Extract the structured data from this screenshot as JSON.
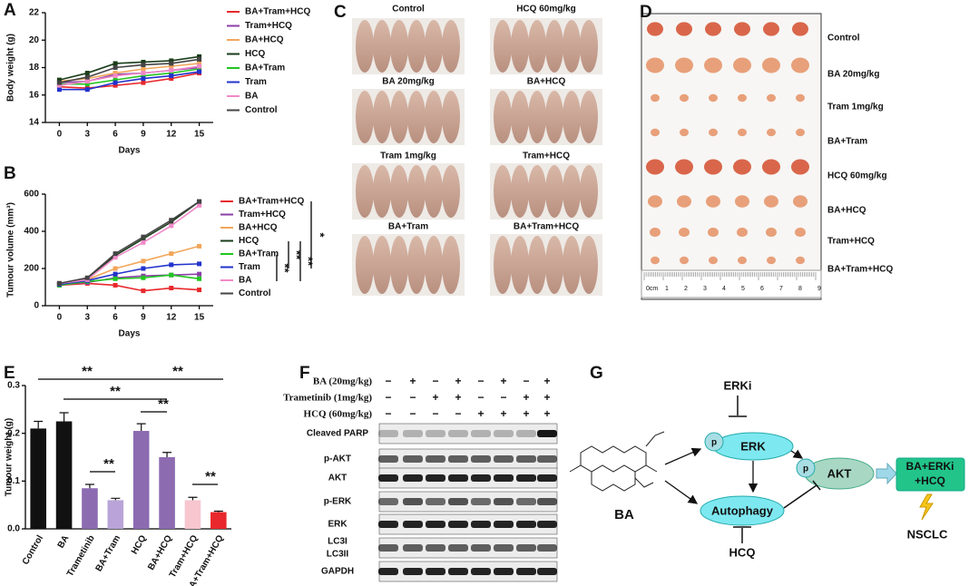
{
  "panel_labels": [
    "A",
    "B",
    "C",
    "D",
    "E",
    "F",
    "G"
  ],
  "chart_data": [
    {
      "type": "line",
      "xlabel": "Days",
      "ylabel": "Body weight (g)",
      "x": [
        0,
        3,
        6,
        9,
        12,
        15
      ],
      "xlim": [
        -1.5,
        16.5
      ],
      "xticks": [
        0,
        3,
        6,
        9,
        12,
        15
      ],
      "ylim": [
        14,
        22
      ],
      "yticks": [
        14,
        16,
        18,
        20,
        22
      ],
      "series": [
        {
          "name": "BA+Tram+HCQ",
          "color": "#e8282c",
          "values": [
            16.6,
            16.5,
            16.7,
            16.9,
            17.2,
            17.6
          ]
        },
        {
          "name": "Tram+HCQ",
          "color": "#8b3fa6",
          "values": [
            16.9,
            17.0,
            17.5,
            17.6,
            17.8,
            18.0
          ]
        },
        {
          "name": "BA+HCQ",
          "color": "#f2a65a",
          "values": [
            17.0,
            17.2,
            17.6,
            17.9,
            18.1,
            18.3
          ]
        },
        {
          "name": "HCQ",
          "color": "#1a3d1a",
          "values": [
            17.1,
            17.6,
            18.3,
            18.4,
            18.5,
            18.8
          ]
        },
        {
          "name": "BA+Tram",
          "color": "#22c522",
          "values": [
            16.8,
            16.8,
            17.1,
            17.4,
            17.6,
            17.9
          ]
        },
        {
          "name": "Tram",
          "color": "#2233cc",
          "values": [
            16.4,
            16.4,
            16.9,
            17.2,
            17.4,
            17.7
          ]
        },
        {
          "name": "BA",
          "color": "#f08ac8",
          "values": [
            16.7,
            17.0,
            17.4,
            17.6,
            17.8,
            18.1
          ]
        },
        {
          "name": "Control",
          "color": "#444444",
          "values": [
            16.9,
            17.3,
            18.0,
            18.2,
            18.3,
            18.6
          ]
        }
      ]
    },
    {
      "type": "line",
      "xlabel": "Days",
      "ylabel": "Tumour volume (mm³)",
      "x": [
        0,
        3,
        6,
        9,
        12,
        15
      ],
      "xlim": [
        -1.5,
        16.5
      ],
      "xticks": [
        0,
        3,
        6,
        9,
        12,
        15
      ],
      "ylim": [
        0,
        600
      ],
      "yticks": [
        0,
        200,
        400,
        600
      ],
      "annotations": [
        "*",
        "**",
        "**",
        "**"
      ],
      "series": [
        {
          "name": "BA+Tram+HCQ",
          "color": "#e8282c",
          "values": [
            110,
            120,
            110,
            80,
            95,
            85
          ]
        },
        {
          "name": "Tram+HCQ",
          "color": "#8b3fa6",
          "values": [
            115,
            125,
            150,
            160,
            165,
            170
          ]
        },
        {
          "name": "BA+HCQ",
          "color": "#f2a65a",
          "values": [
            120,
            140,
            200,
            240,
            280,
            320
          ]
        },
        {
          "name": "HCQ",
          "color": "#1a3d1a",
          "values": [
            120,
            145,
            270,
            360,
            450,
            560
          ]
        },
        {
          "name": "BA+Tram",
          "color": "#22c522",
          "values": [
            110,
            130,
            145,
            150,
            165,
            145
          ]
        },
        {
          "name": "Tram",
          "color": "#2233cc",
          "values": [
            115,
            135,
            170,
            200,
            220,
            225
          ]
        },
        {
          "name": "BA",
          "color": "#f08ac8",
          "values": [
            120,
            140,
            260,
            340,
            430,
            540
          ]
        },
        {
          "name": "Control",
          "color": "#444444",
          "values": [
            120,
            150,
            280,
            370,
            460,
            560
          ]
        }
      ]
    },
    {
      "type": "bar",
      "ylabel": "Tumour weight (g)",
      "categories": [
        "Control",
        "BA",
        "Trametinib",
        "BA+Tram",
        "HCQ",
        "BA+HCQ",
        "Tram+HCQ",
        "BA+Tram+HCQ"
      ],
      "values": [
        0.21,
        0.225,
        0.085,
        0.06,
        0.205,
        0.15,
        0.06,
        0.035
      ],
      "errors": [
        0.015,
        0.018,
        0.008,
        0.004,
        0.015,
        0.01,
        0.006,
        0.002
      ],
      "colors": [
        "#111111",
        "#111111",
        "#8c6bb1",
        "#b9a3d8",
        "#8c6bb1",
        "#8c6bb1",
        "#f7c6cf",
        "#e8282c"
      ],
      "ylim": [
        0,
        0.3
      ],
      "yticks": [
        {
          "value": 0,
          "label": "0.0"
        },
        0.1,
        0.2,
        0.3
      ],
      "annotations": [
        "**",
        "**",
        "**",
        "**",
        "**",
        "**"
      ]
    }
  ],
  "panel_c": {
    "labels": [
      "Control",
      "HCQ 60mg/kg",
      "BA 20mg/kg",
      "BA+HCQ",
      "Tram 1mg/kg",
      "Tram+HCQ",
      "BA+Tram",
      "BA+Tram+HCQ"
    ]
  },
  "panel_d": {
    "labels": [
      "Control",
      "BA 20mg/kg",
      "Tram 1mg/kg",
      "BA+Tram",
      "HCQ 60mg/kg",
      "BA+HCQ",
      "Tram+HCQ",
      "BA+Tram+HCQ"
    ],
    "ruler": [
      "0cm",
      "1",
      "2",
      "3",
      "4",
      "5",
      "6",
      "7",
      "8",
      "9"
    ]
  },
  "panel_f": {
    "treatments": [
      {
        "label": "BA (20mg/kg)",
        "signs": [
          "−",
          "+",
          "−",
          "+",
          "−",
          "+",
          "−",
          "+"
        ]
      },
      {
        "label": "Trametinib (1mg/kg)",
        "signs": [
          "−",
          "−",
          "+",
          "+",
          "−",
          "−",
          "+",
          "+"
        ]
      },
      {
        "label": "HCQ (60mg/kg)",
        "signs": [
          "−",
          "−",
          "−",
          "−",
          "+",
          "+",
          "+",
          "+"
        ]
      }
    ],
    "blots": [
      "Cleaved PARP",
      "p-AKT",
      "AKT",
      "p-ERK",
      "ERK",
      "LC3I",
      "LC3II",
      "GAPDH"
    ]
  },
  "panel_g": {
    "compound": "BA",
    "inhibitor": "ERKi",
    "erk": "ERK",
    "phospho": "p",
    "akt": "AKT",
    "autophagy": "Autophagy",
    "hcq": "HCQ",
    "combo": [
      "BA+ERKi",
      "+HCQ"
    ],
    "disease": "NSCLC"
  }
}
